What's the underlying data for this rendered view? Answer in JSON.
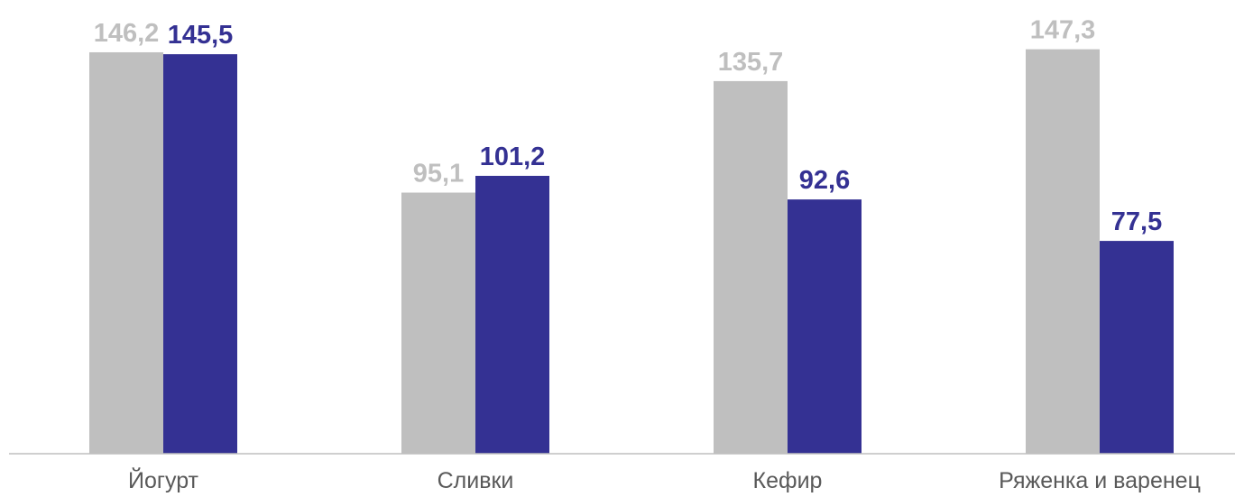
{
  "chart_data": {
    "type": "bar",
    "categories": [
      "Йогурт",
      "Сливки",
      "Кефир",
      "Ряженка и варенец"
    ],
    "series": [
      {
        "values": [
          146.2,
          95.1,
          135.7,
          147.3
        ],
        "labels": [
          "146,2",
          "95,1",
          "135,7",
          "147,3"
        ],
        "color": "#bfbfbf"
      },
      {
        "values": [
          145.5,
          101.2,
          92.6,
          77.5
        ],
        "labels": [
          "145,5",
          "101,2",
          "92,6",
          "77,5"
        ],
        "color": "#343193"
      }
    ],
    "ylim": [
      0,
      155
    ],
    "grid": false,
    "axis_line_color": "#bfbfbf"
  }
}
